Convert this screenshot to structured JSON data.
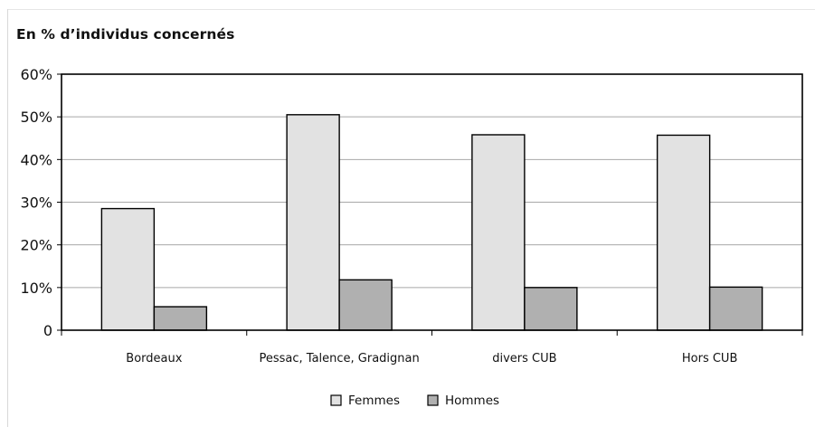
{
  "title": "En % d’individus concernés",
  "chart_data": {
    "type": "bar",
    "title": "En % d’individus concernés",
    "categories": [
      "Bordeaux",
      "Pessac, Talence, Gradignan",
      "divers CUB",
      "Hors CUB"
    ],
    "series": [
      {
        "name": "Femmes",
        "color": "#e2e2e2",
        "values": [
          28.5,
          50.5,
          45.8,
          45.7
        ]
      },
      {
        "name": "Hommes",
        "color": "#b0b0b0",
        "values": [
          5.5,
          11.8,
          10.0,
          10.1
        ]
      }
    ],
    "ylim": [
      0,
      60
    ],
    "yticks": [
      0,
      10,
      20,
      30,
      40,
      50,
      60
    ],
    "ytick_labels": [
      "0",
      "10%",
      "20%",
      "30%",
      "40%",
      "50%",
      "60%"
    ],
    "grid": true,
    "legend_position": "bottom-center"
  }
}
